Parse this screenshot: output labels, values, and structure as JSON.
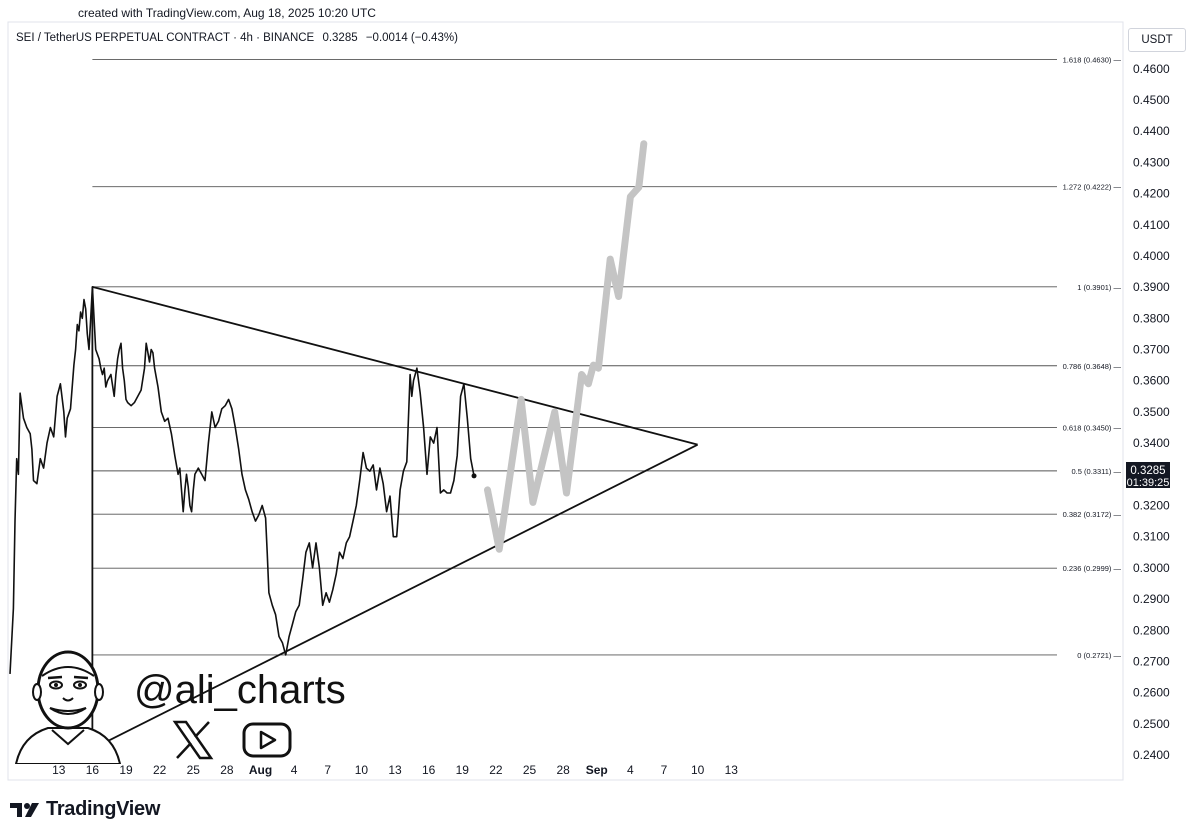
{
  "created_text": "created with TradingView.com, Aug 18, 2025 10:20 UTC",
  "header": {
    "symbol": "SEI / TetherUS PERPETUAL CONTRACT · 4h · BINANCE",
    "price": "0.3285",
    "change": "−0.0014 (−0.43%)"
  },
  "currency_button": "USDT",
  "price_badge": {
    "price": "0.3285",
    "countdown": "01:39:25"
  },
  "watermark": {
    "handle": "@ali_charts"
  },
  "brand": {
    "name": "TradingView"
  },
  "chart_data": {
    "type": "line",
    "title": "",
    "y_axis": {
      "range": [
        0.232,
        0.475
      ],
      "ticks": [
        0.24,
        0.25,
        0.26,
        0.27,
        0.28,
        0.29,
        0.3,
        0.31,
        0.32,
        0.33,
        0.34,
        0.35,
        0.36,
        0.37,
        0.38,
        0.39,
        0.4,
        0.41,
        0.42,
        0.43,
        0.44,
        0.45,
        0.46
      ]
    },
    "x_axis": {
      "range_days": [
        -1.6,
        31.5
      ],
      "ticks": [
        {
          "day": -0.15,
          "label": "13"
        },
        {
          "day": 0.85,
          "label": "16"
        },
        {
          "day": 1.85,
          "label": "19"
        },
        {
          "day": 2.85,
          "label": "22"
        },
        {
          "day": 3.85,
          "label": "25"
        },
        {
          "day": 4.85,
          "label": "28"
        },
        {
          "day": 5.85,
          "label": "Aug"
        },
        {
          "day": 6.85,
          "label": "4"
        },
        {
          "day": 7.85,
          "label": "7"
        },
        {
          "day": 8.85,
          "label": "10"
        },
        {
          "day": 9.85,
          "label": "13"
        },
        {
          "day": 10.85,
          "label": "16"
        },
        {
          "day": 11.85,
          "label": "19"
        },
        {
          "day": 12.85,
          "label": "22"
        },
        {
          "day": 13.85,
          "label": "25"
        },
        {
          "day": 14.85,
          "label": "28"
        },
        {
          "day": 15.85,
          "label": "Sep"
        },
        {
          "day": 16.85,
          "label": "4"
        },
        {
          "day": 17.85,
          "label": "7"
        },
        {
          "day": 18.85,
          "label": "10"
        },
        {
          "day": 19.85,
          "label": "13"
        }
      ]
    },
    "fib_levels": [
      {
        "label": "1.618 (0.4630)",
        "value": 0.463
      },
      {
        "label": "1.272 (0.4222)",
        "value": 0.4222
      },
      {
        "label": "1 (0.3901)",
        "value": 0.3901
      },
      {
        "label": "0.786 (0.3648)",
        "value": 0.3648
      },
      {
        "label": "0.618 (0.3450)",
        "value": 0.345
      },
      {
        "label": "0.5 (0.3311)",
        "value": 0.3311
      },
      {
        "label": "0.382 (0.3172)",
        "value": 0.3172
      },
      {
        "label": "0.236 (0.2999)",
        "value": 0.2999
      },
      {
        "label": "0 (0.2721)",
        "value": 0.2721
      }
    ],
    "triangle": {
      "upper": [
        [
          0.85,
          0.3901
        ],
        [
          18.85,
          0.3395
        ]
      ],
      "lower": [
        [
          0.85,
          0.242
        ],
        [
          18.85,
          0.3395
        ]
      ],
      "apex": [
        18.85,
        0.3395
      ]
    },
    "series": [
      {
        "values_xy": [
          [
            -1.6,
            0.266
          ],
          [
            -1.5,
            0.287
          ],
          [
            -1.45,
            0.315
          ],
          [
            -1.4,
            0.335
          ],
          [
            -1.35,
            0.33
          ],
          [
            -1.3,
            0.356
          ],
          [
            -1.2,
            0.348
          ],
          [
            -1.1,
            0.345
          ],
          [
            -1.0,
            0.343
          ],
          [
            -0.95,
            0.338
          ],
          [
            -0.9,
            0.328
          ],
          [
            -0.8,
            0.327
          ],
          [
            -0.7,
            0.335
          ],
          [
            -0.6,
            0.332
          ],
          [
            -0.5,
            0.34
          ],
          [
            -0.4,
            0.345
          ],
          [
            -0.3,
            0.342
          ],
          [
            -0.2,
            0.355
          ],
          [
            -0.1,
            0.359
          ],
          [
            0.0,
            0.35
          ],
          [
            0.05,
            0.342
          ],
          [
            0.1,
            0.348
          ],
          [
            0.2,
            0.351
          ],
          [
            0.3,
            0.365
          ],
          [
            0.35,
            0.37
          ],
          [
            0.4,
            0.378
          ],
          [
            0.45,
            0.376
          ],
          [
            0.5,
            0.382
          ],
          [
            0.55,
            0.38
          ],
          [
            0.6,
            0.386
          ],
          [
            0.65,
            0.383
          ],
          [
            0.7,
            0.375
          ],
          [
            0.75,
            0.37
          ],
          [
            0.8,
            0.38
          ],
          [
            0.85,
            0.3901
          ],
          [
            0.95,
            0.37
          ],
          [
            1.05,
            0.367
          ],
          [
            1.1,
            0.364
          ],
          [
            1.15,
            0.362
          ],
          [
            1.2,
            0.364
          ],
          [
            1.25,
            0.358
          ],
          [
            1.3,
            0.36
          ],
          [
            1.4,
            0.362
          ],
          [
            1.5,
            0.355
          ],
          [
            1.55,
            0.362
          ],
          [
            1.6,
            0.367
          ],
          [
            1.65,
            0.37
          ],
          [
            1.7,
            0.372
          ],
          [
            1.75,
            0.364
          ],
          [
            1.8,
            0.36
          ],
          [
            1.85,
            0.354
          ],
          [
            1.9,
            0.353
          ],
          [
            2.0,
            0.352
          ],
          [
            2.1,
            0.353
          ],
          [
            2.2,
            0.355
          ],
          [
            2.3,
            0.357
          ],
          [
            2.4,
            0.364
          ],
          [
            2.45,
            0.372
          ],
          [
            2.5,
            0.369
          ],
          [
            2.55,
            0.366
          ],
          [
            2.6,
            0.37
          ],
          [
            2.65,
            0.369
          ],
          [
            2.7,
            0.364
          ],
          [
            2.8,
            0.358
          ],
          [
            2.9,
            0.35
          ],
          [
            3.0,
            0.347
          ],
          [
            3.1,
            0.348
          ],
          [
            3.2,
            0.343
          ],
          [
            3.3,
            0.336
          ],
          [
            3.4,
            0.33
          ],
          [
            3.45,
            0.332
          ],
          [
            3.5,
            0.325
          ],
          [
            3.55,
            0.318
          ],
          [
            3.6,
            0.325
          ],
          [
            3.65,
            0.33
          ],
          [
            3.7,
            0.326
          ],
          [
            3.75,
            0.32
          ],
          [
            3.8,
            0.318
          ],
          [
            3.85,
            0.325
          ],
          [
            3.9,
            0.33
          ],
          [
            4.0,
            0.332
          ],
          [
            4.1,
            0.33
          ],
          [
            4.2,
            0.328
          ],
          [
            4.3,
            0.34
          ],
          [
            4.4,
            0.35
          ],
          [
            4.5,
            0.345
          ],
          [
            4.6,
            0.347
          ],
          [
            4.7,
            0.351
          ],
          [
            4.8,
            0.352
          ],
          [
            4.9,
            0.354
          ],
          [
            5.0,
            0.351
          ],
          [
            5.1,
            0.345
          ],
          [
            5.2,
            0.338
          ],
          [
            5.3,
            0.33
          ],
          [
            5.4,
            0.325
          ],
          [
            5.5,
            0.322
          ],
          [
            5.6,
            0.318
          ],
          [
            5.7,
            0.315
          ],
          [
            5.8,
            0.317
          ],
          [
            5.9,
            0.32
          ],
          [
            6.0,
            0.316
          ],
          [
            6.05,
            0.305
          ],
          [
            6.1,
            0.292
          ],
          [
            6.2,
            0.288
          ],
          [
            6.3,
            0.285
          ],
          [
            6.4,
            0.278
          ],
          [
            6.5,
            0.276
          ],
          [
            6.6,
            0.2721
          ],
          [
            6.7,
            0.278
          ],
          [
            6.8,
            0.282
          ],
          [
            6.9,
            0.286
          ],
          [
            7.0,
            0.288
          ],
          [
            7.1,
            0.296
          ],
          [
            7.2,
            0.305
          ],
          [
            7.3,
            0.308
          ],
          [
            7.4,
            0.3
          ],
          [
            7.5,
            0.308
          ],
          [
            7.6,
            0.3
          ],
          [
            7.7,
            0.288
          ],
          [
            7.8,
            0.292
          ],
          [
            7.9,
            0.289
          ],
          [
            8.0,
            0.293
          ],
          [
            8.1,
            0.298
          ],
          [
            8.2,
            0.305
          ],
          [
            8.3,
            0.303
          ],
          [
            8.4,
            0.308
          ],
          [
            8.5,
            0.31
          ],
          [
            8.6,
            0.315
          ],
          [
            8.7,
            0.32
          ],
          [
            8.8,
            0.328
          ],
          [
            8.9,
            0.337
          ],
          [
            9.0,
            0.332
          ],
          [
            9.1,
            0.331
          ],
          [
            9.2,
            0.333
          ],
          [
            9.3,
            0.325
          ],
          [
            9.4,
            0.332
          ],
          [
            9.5,
            0.327
          ],
          [
            9.6,
            0.318
          ],
          [
            9.7,
            0.323
          ],
          [
            9.8,
            0.31
          ],
          [
            9.9,
            0.31
          ],
          [
            10.0,
            0.325
          ],
          [
            10.1,
            0.331
          ],
          [
            10.2,
            0.334
          ],
          [
            10.3,
            0.362
          ],
          [
            10.35,
            0.355
          ],
          [
            10.4,
            0.36
          ],
          [
            10.5,
            0.364
          ],
          [
            10.6,
            0.356
          ],
          [
            10.7,
            0.345
          ],
          [
            10.8,
            0.33
          ],
          [
            10.9,
            0.342
          ],
          [
            11.0,
            0.34
          ],
          [
            11.1,
            0.345
          ],
          [
            11.2,
            0.324
          ],
          [
            11.3,
            0.325
          ],
          [
            11.4,
            0.324
          ],
          [
            11.5,
            0.324
          ],
          [
            11.6,
            0.328
          ],
          [
            11.7,
            0.336
          ],
          [
            11.8,
            0.355
          ],
          [
            11.9,
            0.359
          ],
          [
            12.0,
            0.348
          ],
          [
            12.1,
            0.335
          ],
          [
            12.2,
            0.3295
          ]
        ]
      }
    ],
    "projection": [
      [
        12.6,
        0.325
      ],
      [
        12.95,
        0.306
      ],
      [
        13.6,
        0.354
      ],
      [
        13.95,
        0.321
      ],
      [
        14.6,
        0.35
      ],
      [
        14.95,
        0.324
      ],
      [
        15.4,
        0.362
      ],
      [
        15.6,
        0.359
      ],
      [
        15.75,
        0.365
      ],
      [
        15.9,
        0.364
      ],
      [
        16.25,
        0.399
      ],
      [
        16.5,
        0.387
      ],
      [
        16.85,
        0.419
      ],
      [
        17.1,
        0.422
      ],
      [
        17.25,
        0.436
      ]
    ]
  }
}
